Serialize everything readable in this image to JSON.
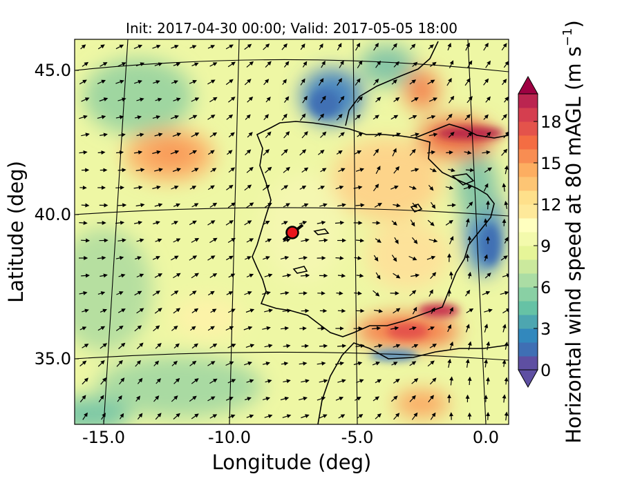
{
  "title": "Init: 2017-04-30 00:00; Valid: 2017-05-05 18:00",
  "x_axis": {
    "label": "Longitude (deg)",
    "ticks": [
      "-15.0",
      "-10.0",
      "-5.0",
      "0.0"
    ]
  },
  "y_axis": {
    "label": "Latitude (deg)",
    "ticks": [
      "45.0",
      "40.0",
      "35.0"
    ]
  },
  "colorbar": {
    "label": "Horizontal wind speed at 80 mAGL (m s",
    "label_exponent": "−1",
    "label_close": ")",
    "ticks": [
      "0",
      "3",
      "6",
      "9",
      "12",
      "15",
      "18"
    ],
    "min": 0,
    "max": 20,
    "colors": [
      "#5e4fa2",
      "#3f6fb4",
      "#3288bd",
      "#4da6b0",
      "#66c2a5",
      "#89d0a4",
      "#abdda4",
      "#cbe99d",
      "#e6f598",
      "#f3faac",
      "#ffffbf",
      "#fee99a",
      "#fee08b",
      "#fdc574",
      "#fdae61",
      "#f88d52",
      "#f46d43",
      "#e4534b",
      "#d53e4f",
      "#bb2550"
    ],
    "extend": "both",
    "under_color": "#5e4fa2",
    "over_color": "#9e0142"
  },
  "marker": {
    "label": "site",
    "lon": -7.6,
    "lat": 39.3,
    "color": "#e8141b"
  },
  "map": {
    "lon_range": [
      -15.9,
      0.2
    ],
    "lat_range": [
      33.0,
      46.0
    ],
    "projection": "lambert-conformal",
    "background_wind_ms": 9
  }
}
